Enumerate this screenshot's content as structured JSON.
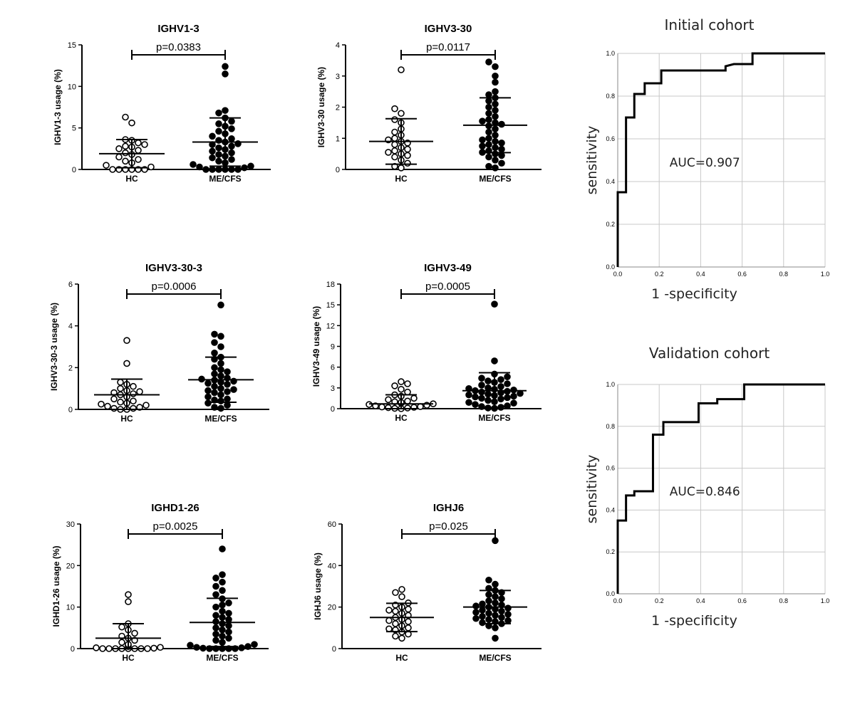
{
  "chart_data": [
    {
      "type": "scatter",
      "title": "IGHV1-3",
      "ylabel": "IGHV1-3 usage (%)",
      "categories": [
        "HC",
        "ME/CFS"
      ],
      "ylim": [
        0,
        15
      ],
      "yticks": [
        0,
        5,
        10,
        15
      ],
      "pvalue": "p=0.0383",
      "series": [
        {
          "values": [
            6.3,
            5.6,
            3.6,
            3.5,
            3.2,
            3.0,
            2.8,
            2.7,
            2.5,
            2.3,
            2.0,
            1.8,
            1.5,
            1.2,
            1.0,
            0.8,
            0.5,
            0.3,
            0,
            0,
            0,
            0,
            0,
            0
          ],
          "mean": 1.9,
          "sd": 1.7
        },
        {
          "values": [
            12.4,
            11.5,
            7.1,
            6.8,
            6.2,
            5.8,
            5.5,
            5.2,
            4.9,
            4.6,
            4.3,
            4.0,
            3.7,
            3.5,
            3.3,
            3.1,
            3.0,
            2.8,
            2.6,
            2.4,
            2.2,
            2.0,
            1.8,
            1.6,
            1.4,
            1.2,
            1.0,
            0.8,
            0.6,
            0.4,
            0.3,
            0.2,
            0,
            0,
            0,
            0,
            0,
            0
          ],
          "mean": 3.3,
          "sd": 2.9
        }
      ]
    },
    {
      "type": "scatter",
      "title": "IGHV3-30",
      "ylabel": "IGHV3-30 usage (%)",
      "categories": [
        "HC",
        "ME/CFS"
      ],
      "ylim": [
        0,
        4
      ],
      "yticks": [
        0,
        1,
        2,
        3,
        4
      ],
      "pvalue": "p=0.0117",
      "series": [
        {
          "values": [
            3.2,
            1.95,
            1.8,
            1.6,
            1.5,
            1.3,
            1.2,
            1.1,
            1.0,
            0.95,
            0.9,
            0.85,
            0.8,
            0.7,
            0.65,
            0.6,
            0.55,
            0.5,
            0.45,
            0.4,
            0.3,
            0.2,
            0.1,
            0.05
          ],
          "mean": 0.9,
          "sd": 0.73
        },
        {
          "values": [
            3.45,
            3.3,
            3.0,
            2.8,
            2.5,
            2.4,
            2.3,
            2.2,
            2.1,
            2.0,
            1.9,
            1.8,
            1.7,
            1.6,
            1.55,
            1.5,
            1.45,
            1.4,
            1.3,
            1.2,
            1.1,
            1.0,
            0.95,
            0.9,
            0.85,
            0.8,
            0.75,
            0.7,
            0.65,
            0.6,
            0.55,
            0.5,
            0.45,
            0.4,
            0.3,
            0.2,
            0.1,
            0.05
          ],
          "mean": 1.42,
          "sd": 0.88
        }
      ]
    },
    {
      "type": "scatter",
      "title": "IGHV3-30-3",
      "ylabel": "IGHV3-30-3 usage (%)",
      "categories": [
        "HC",
        "ME/CFS"
      ],
      "ylim": [
        0,
        6
      ],
      "yticks": [
        0,
        2,
        4,
        6
      ],
      "pvalue": "p=0.0006",
      "series": [
        {
          "values": [
            3.3,
            2.2,
            1.3,
            1.2,
            1.1,
            1.0,
            0.9,
            0.85,
            0.8,
            0.75,
            0.7,
            0.6,
            0.5,
            0.4,
            0.35,
            0.3,
            0.25,
            0.2,
            0.15,
            0.1,
            0.05,
            0.05,
            0,
            0
          ],
          "mean": 0.7,
          "sd": 0.75
        },
        {
          "values": [
            5.0,
            3.6,
            3.5,
            3.2,
            3.0,
            2.7,
            2.5,
            2.4,
            2.2,
            2.0,
            1.9,
            1.8,
            1.7,
            1.6,
            1.5,
            1.45,
            1.4,
            1.35,
            1.3,
            1.25,
            1.2,
            1.1,
            1.0,
            0.95,
            0.9,
            0.85,
            0.8,
            0.7,
            0.6,
            0.5,
            0.45,
            0.4,
            0.3,
            0.2,
            0.1,
            0.05
          ],
          "mean": 1.42,
          "sd": 1.08
        }
      ]
    },
    {
      "type": "scatter",
      "title": "IGHV3-49",
      "ylabel": "IGHV3-49 usage (%)",
      "categories": [
        "HC",
        "ME/CFS"
      ],
      "ylim": [
        0,
        18
      ],
      "yticks": [
        0,
        3,
        6,
        9,
        12,
        15,
        18
      ],
      "pvalue": "p=0.0005",
      "series": [
        {
          "values": [
            3.9,
            3.6,
            3.3,
            2.8,
            2.4,
            2.0,
            1.8,
            1.5,
            1.3,
            1.1,
            1.0,
            0.9,
            0.8,
            0.7,
            0.6,
            0.5,
            0.4,
            0.3,
            0.25,
            0.2,
            0.15,
            0.1,
            0.05,
            0
          ],
          "mean": 0.7,
          "sd": 1.3
        },
        {
          "values": [
            15.1,
            6.9,
            5.0,
            4.6,
            4.4,
            4.2,
            4.0,
            3.8,
            3.6,
            3.4,
            3.2,
            3.0,
            2.9,
            2.8,
            2.7,
            2.6,
            2.5,
            2.4,
            2.3,
            2.2,
            2.1,
            2.0,
            1.9,
            1.8,
            1.7,
            1.6,
            1.5,
            1.4,
            1.2,
            1.0,
            0.9,
            0.8,
            0.6,
            0.4,
            0.3,
            0.2,
            0.1,
            0.05
          ],
          "mean": 2.6,
          "sd": 2.6
        }
      ]
    },
    {
      "type": "scatter",
      "title": "IGHD1-26",
      "ylabel": "IGHD1-26 usage (%)",
      "categories": [
        "HC",
        "ME/CFS"
      ],
      "ylim": [
        0,
        30
      ],
      "yticks": [
        0,
        10,
        20,
        30
      ],
      "pvalue": "p=0.0025",
      "series": [
        {
          "values": [
            13.0,
            11.3,
            6.0,
            5.2,
            4.5,
            3.7,
            3.0,
            2.5,
            2.0,
            1.5,
            1.0,
            0.8,
            0.5,
            0.3,
            0.2,
            0.1,
            0,
            0,
            0,
            0,
            0,
            0,
            0,
            0
          ],
          "mean": 2.5,
          "sd": 3.5
        },
        {
          "values": [
            24.0,
            17.8,
            17.0,
            16.0,
            15.0,
            14.0,
            13.0,
            12.0,
            11.0,
            10.5,
            10.0,
            9.0,
            8.5,
            8.0,
            7.5,
            7.0,
            6.5,
            6.0,
            5.5,
            5.0,
            4.5,
            4.0,
            3.5,
            3.0,
            2.5,
            2.0,
            1.5,
            1.0,
            0.8,
            0.5,
            0.3,
            0.2,
            0.1,
            0,
            0,
            0,
            0,
            0
          ],
          "mean": 6.3,
          "sd": 5.8
        }
      ]
    },
    {
      "type": "scatter",
      "title": "IGHJ6",
      "ylabel": "IGHJ6 usage (%)",
      "categories": [
        "HC",
        "ME/CFS"
      ],
      "ylim": [
        0,
        60
      ],
      "yticks": [
        0,
        20,
        40,
        60
      ],
      "pvalue": "p=0.025",
      "series": [
        {
          "values": [
            28.5,
            27.0,
            25.0,
            22.0,
            21.0,
            20.0,
            19.0,
            18.5,
            18.0,
            17.0,
            16.0,
            15.0,
            14.0,
            13.5,
            13.0,
            12.0,
            11.0,
            10.0,
            9.5,
            9.0,
            8.0,
            7.0,
            6.0,
            5.0
          ],
          "mean": 15.0,
          "sd": 6.8
        },
        {
          "values": [
            52.0,
            33.0,
            31.0,
            29.0,
            28.0,
            27.0,
            26.0,
            25.0,
            24.0,
            23.0,
            22.0,
            21.5,
            21.0,
            20.5,
            20.0,
            19.5,
            19.0,
            18.5,
            18.0,
            17.5,
            17.0,
            16.5,
            16.0,
            15.5,
            15.0,
            14.5,
            14.0,
            13.5,
            13.0,
            12.5,
            12.0,
            11.0,
            10.0,
            5.0
          ],
          "mean": 20.0,
          "sd": 8.0
        }
      ]
    },
    {
      "type": "line",
      "title": "Initial cohort",
      "xlabel": "1 -specificity",
      "ylabel": "sensitivity",
      "xlim": [
        0,
        1
      ],
      "ylim": [
        0,
        1
      ],
      "ticks": [
        "0.0",
        "0.2",
        "0.4",
        "0.6",
        "0.8",
        "1.0"
      ],
      "annotation": "AUC=0.907",
      "grid": true,
      "x": [
        0,
        0,
        0.04,
        0.04,
        0.08,
        0.08,
        0.13,
        0.13,
        0.21,
        0.21,
        0.52,
        0.52,
        0.56,
        0.65,
        0.65,
        1.0
      ],
      "y": [
        0,
        0.35,
        0.35,
        0.7,
        0.7,
        0.81,
        0.81,
        0.86,
        0.86,
        0.92,
        0.92,
        0.94,
        0.95,
        0.95,
        1.0,
        1.0
      ]
    },
    {
      "type": "line",
      "title": "Validation cohort",
      "xlabel": "1 -specificity",
      "ylabel": "sensitivity",
      "xlim": [
        0,
        1
      ],
      "ylim": [
        0,
        1
      ],
      "ticks": [
        "0.0",
        "0.2",
        "0.4",
        "0.6",
        "0.8",
        "1.0"
      ],
      "annotation": "AUC=0.846",
      "grid": true,
      "x": [
        0,
        0,
        0.04,
        0.04,
        0.08,
        0.08,
        0.17,
        0.17,
        0.22,
        0.22,
        0.39,
        0.39,
        0.48,
        0.48,
        0.61,
        0.61,
        1.0
      ],
      "y": [
        0,
        0.35,
        0.35,
        0.47,
        0.47,
        0.49,
        0.49,
        0.76,
        0.76,
        0.82,
        0.82,
        0.91,
        0.91,
        0.93,
        0.93,
        1.0,
        1.0
      ]
    }
  ]
}
